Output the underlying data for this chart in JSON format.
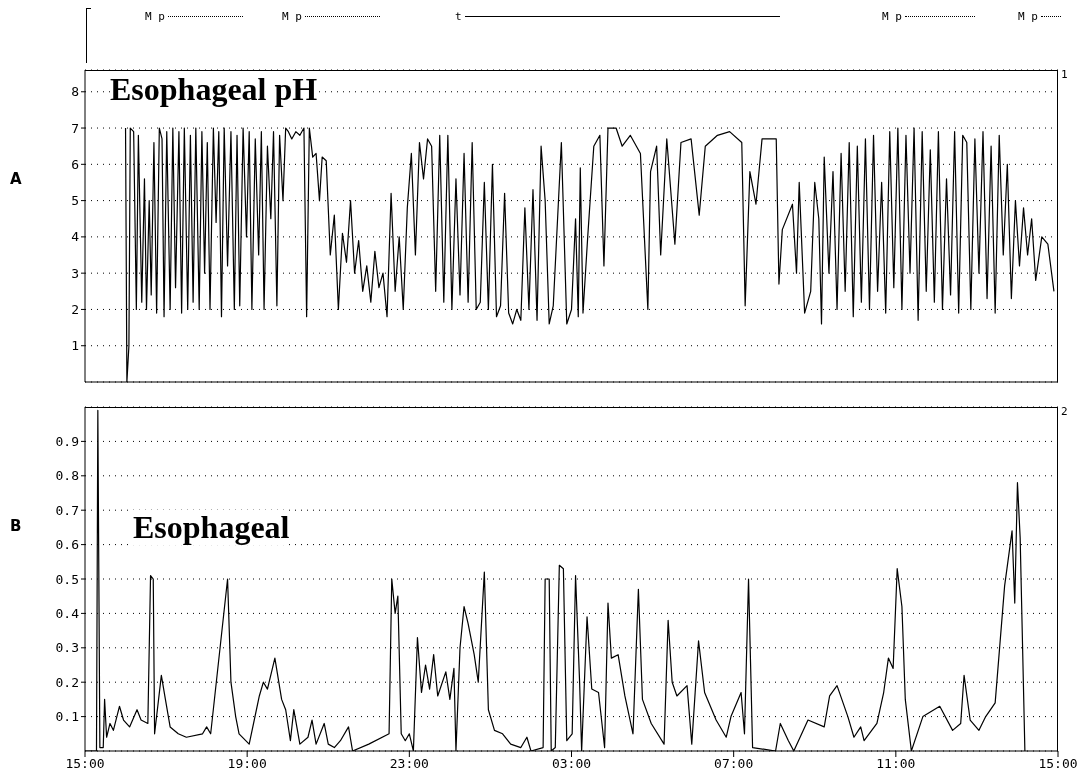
{
  "chart_data": [
    {
      "type": "line",
      "title": "Esophageal pH",
      "xlim": [
        "2000-01-01T15:00",
        "2000-01-02T15:00"
      ],
      "xticks": [
        {
          "value": "2000-01-01T15:00",
          "label": null
        },
        {
          "value": "2000-01-01T19:00",
          "label": null
        },
        {
          "value": "2000-01-01T23:00",
          "label": null
        },
        {
          "value": "2000-01-02T03:00",
          "label": null
        },
        {
          "value": "2000-01-02T07:00",
          "label": null
        },
        {
          "value": "2000-01-02T11:00",
          "label": null
        },
        {
          "value": "2000-01-02T15:00",
          "label": null
        }
      ],
      "ylim": [
        0,
        8.6
      ],
      "yticks": [
        1,
        2,
        3,
        4,
        5,
        6,
        7,
        8
      ],
      "grid": "y",
      "tick_labels": "y",
      "annotations": [
        "A",
        "1",
        "M p",
        "M p",
        "t",
        "M p",
        "M p"
      ],
      "series": [
        {
          "color": "#000000",
          "x": [
            "2000-01-01T16:00",
            "2000-01-01T16:02",
            "2000-01-01T16:05",
            "2000-01-01T16:07",
            "2000-01-01T16:12",
            "2000-01-01T16:16",
            "2000-01-01T16:19",
            "2000-01-01T16:24",
            "2000-01-01T16:28",
            "2000-01-01T16:31",
            "2000-01-01T16:35",
            "2000-01-01T16:38",
            "2000-01-01T16:42",
            "2000-01-01T16:46",
            "2000-01-01T16:50",
            "2000-01-01T16:54",
            "2000-01-01T16:57",
            "2000-01-01T17:01",
            "2000-01-01T17:06",
            "2000-01-01T17:10",
            "2000-01-01T17:14",
            "2000-01-01T17:19",
            "2000-01-01T17:23",
            "2000-01-01T17:27",
            "2000-01-01T17:32",
            "2000-01-01T17:36",
            "2000-01-01T17:40",
            "2000-01-01T17:44",
            "2000-01-01T17:49",
            "2000-01-01T17:53",
            "2000-01-01T17:57",
            "2000-01-01T18:01",
            "2000-01-01T18:05",
            "2000-01-01T18:10",
            "2000-01-01T18:14",
            "2000-01-01T18:18",
            "2000-01-01T18:22",
            "2000-01-01T18:26",
            "2000-01-01T18:31",
            "2000-01-01T18:36",
            "2000-01-01T18:41",
            "2000-01-01T18:45",
            "2000-01-01T18:49",
            "2000-01-01T18:54",
            "2000-01-01T18:59",
            "2000-01-01T19:03",
            "2000-01-01T19:07",
            "2000-01-01T19:12",
            "2000-01-01T19:17",
            "2000-01-01T19:21",
            "2000-01-01T19:25",
            "2000-01-01T19:30",
            "2000-01-01T19:35",
            "2000-01-01T19:39",
            "2000-01-01T19:44",
            "2000-01-01T19:48",
            "2000-01-01T19:53",
            "2000-01-01T19:57",
            "2000-01-01T20:01",
            "2000-01-01T20:06",
            "2000-01-01T20:12",
            "2000-01-01T20:18",
            "2000-01-01T20:24",
            "2000-01-01T20:28",
            "2000-01-01T20:32",
            "2000-01-01T20:37",
            "2000-01-01T20:42",
            "2000-01-01T20:47",
            "2000-01-01T20:51",
            "2000-01-01T20:57",
            "2000-01-01T21:03",
            "2000-01-01T21:09",
            "2000-01-01T21:15",
            "2000-01-01T21:21",
            "2000-01-01T21:27",
            "2000-01-01T21:33",
            "2000-01-01T21:39",
            "2000-01-01T21:45",
            "2000-01-01T21:51",
            "2000-01-01T21:57",
            "2000-01-01T22:03",
            "2000-01-01T22:09",
            "2000-01-01T22:15",
            "2000-01-01T22:21",
            "2000-01-01T22:27",
            "2000-01-01T22:33",
            "2000-01-01T22:39",
            "2000-01-01T22:45",
            "2000-01-01T22:51",
            "2000-01-01T22:57",
            "2000-01-01T23:03",
            "2000-01-01T23:09",
            "2000-01-01T23:15",
            "2000-01-01T23:21",
            "2000-01-01T23:27",
            "2000-01-01T23:33",
            "2000-01-01T23:39",
            "2000-01-01T23:45",
            "2000-01-01T23:51",
            "2000-01-01T23:57",
            "2000-01-02T00:03",
            "2000-01-02T00:09",
            "2000-01-02T00:15",
            "2000-01-02T00:21",
            "2000-01-02T00:27",
            "2000-01-02T00:33",
            "2000-01-02T00:39",
            "2000-01-02T00:45",
            "2000-01-02T00:51",
            "2000-01-02T00:57",
            "2000-01-02T01:03",
            "2000-01-02T01:09",
            "2000-01-02T01:15",
            "2000-01-02T01:21",
            "2000-01-02T01:27",
            "2000-01-02T01:33",
            "2000-01-02T01:39",
            "2000-01-02T01:45",
            "2000-01-02T01:51",
            "2000-01-02T01:57",
            "2000-01-02T02:03",
            "2000-01-02T02:09",
            "2000-01-02T02:15",
            "2000-01-02T02:21",
            "2000-01-02T02:27",
            "2000-01-02T02:33",
            "2000-01-02T02:45",
            "2000-01-02T02:53",
            "2000-01-02T03:00",
            "2000-01-02T03:06",
            "2000-01-02T03:10",
            "2000-01-02T03:13",
            "2000-01-02T03:17",
            "2000-01-02T03:24",
            "2000-01-02T03:33",
            "2000-01-02T03:42",
            "2000-01-02T03:48",
            "2000-01-02T03:54",
            "2000-01-02T04:06",
            "2000-01-02T04:15",
            "2000-01-02T04:27",
            "2000-01-02T04:42",
            "2000-01-02T04:53",
            "2000-01-02T04:57",
            "2000-01-02T05:06",
            "2000-01-02T05:12",
            "2000-01-02T05:21",
            "2000-01-02T05:33",
            "2000-01-02T05:42",
            "2000-01-02T05:57",
            "2000-01-02T06:09",
            "2000-01-02T06:18",
            "2000-01-02T06:36",
            "2000-01-02T06:54",
            "2000-01-02T07:12",
            "2000-01-02T07:17",
            "2000-01-02T07:24",
            "2000-01-02T07:33",
            "2000-01-02T07:42",
            "2000-01-02T08:03",
            "2000-01-02T08:07",
            "2000-01-02T08:12",
            "2000-01-02T08:27",
            "2000-01-02T08:33",
            "2000-01-02T08:37",
            "2000-01-02T08:45",
            "2000-01-02T08:54",
            "2000-01-02T09:00",
            "2000-01-02T09:06",
            "2000-01-02T09:10",
            "2000-01-02T09:14",
            "2000-01-02T09:21",
            "2000-01-02T09:27",
            "2000-01-02T09:33",
            "2000-01-02T09:39",
            "2000-01-02T09:45",
            "2000-01-02T09:51",
            "2000-01-02T09:57",
            "2000-01-02T10:03",
            "2000-01-02T10:09",
            "2000-01-02T10:15",
            "2000-01-02T10:21",
            "2000-01-02T10:27",
            "2000-01-02T10:33",
            "2000-01-02T10:39",
            "2000-01-02T10:45",
            "2000-01-02T10:51",
            "2000-01-02T10:57",
            "2000-01-02T11:03",
            "2000-01-02T11:09",
            "2000-01-02T11:15",
            "2000-01-02T11:21",
            "2000-01-02T11:27",
            "2000-01-02T11:33",
            "2000-01-02T11:39",
            "2000-01-02T11:45",
            "2000-01-02T11:51",
            "2000-01-02T11:57",
            "2000-01-02T12:03",
            "2000-01-02T12:09",
            "2000-01-02T12:15",
            "2000-01-02T12:21",
            "2000-01-02T12:27",
            "2000-01-02T12:33",
            "2000-01-02T12:39",
            "2000-01-02T12:45",
            "2000-01-02T12:51",
            "2000-01-02T12:57",
            "2000-01-02T13:03",
            "2000-01-02T13:09",
            "2000-01-02T13:15",
            "2000-01-02T13:21",
            "2000-01-02T13:27",
            "2000-01-02T13:33",
            "2000-01-02T13:39",
            "2000-01-02T13:45",
            "2000-01-02T13:51",
            "2000-01-02T13:57",
            "2000-01-02T14:03",
            "2000-01-02T14:09",
            "2000-01-02T14:15",
            "2000-01-02T14:21",
            "2000-01-02T14:27",
            "2000-01-02T14:36",
            "2000-01-02T14:45",
            "2000-01-02T14:54"
          ],
          "values": [
            7.0,
            0.0,
            1.0,
            7.0,
            6.9,
            2.0,
            6.8,
            2.2,
            5.6,
            2.0,
            5.0,
            2.4,
            6.6,
            1.9,
            7.0,
            6.7,
            1.8,
            6.9,
            2.0,
            7.0,
            2.6,
            6.9,
            1.9,
            7.0,
            2.0,
            6.8,
            2.2,
            7.0,
            2.0,
            6.9,
            3.0,
            6.6,
            2.0,
            7.0,
            4.4,
            6.9,
            1.8,
            7.0,
            3.2,
            6.9,
            2.0,
            6.8,
            2.1,
            7.0,
            4.0,
            6.9,
            2.0,
            6.7,
            3.5,
            6.9,
            2.0,
            6.5,
            4.5,
            6.9,
            2.1,
            6.8,
            5.0,
            7.0,
            6.9,
            6.7,
            6.9,
            6.8,
            7.0,
            1.8,
            7.0,
            6.2,
            6.3,
            5.0,
            6.2,
            6.1,
            3.5,
            4.6,
            2.0,
            4.1,
            3.3,
            5.0,
            3.0,
            3.9,
            2.5,
            3.2,
            2.2,
            3.6,
            2.6,
            3.0,
            1.8,
            5.2,
            2.5,
            4.0,
            2.0,
            4.8,
            6.3,
            3.5,
            6.6,
            5.6,
            6.7,
            6.5,
            2.5,
            6.8,
            2.2,
            6.8,
            2.0,
            5.6,
            2.4,
            6.3,
            2.2,
            6.6,
            2.0,
            2.2,
            5.5,
            2.0,
            6.0,
            1.8,
            2.1,
            5.2,
            1.9,
            1.6,
            2.0,
            1.7,
            4.8,
            2.0,
            5.3,
            1.7,
            6.5,
            5.0,
            1.6,
            2.1,
            6.6,
            1.6,
            2.0,
            4.5,
            1.8,
            5.9,
            1.9,
            4.0,
            6.5,
            6.8,
            3.2,
            7.0,
            7.0,
            6.5,
            6.8,
            6.3,
            2.0,
            5.8,
            6.5,
            3.5,
            6.7,
            3.8,
            6.6,
            6.7,
            4.6,
            6.5,
            6.8,
            6.9,
            6.6,
            2.1,
            5.8,
            4.9,
            6.7,
            6.7,
            2.7,
            4.2,
            4.9,
            3.0,
            5.5,
            1.9,
            2.5,
            5.5,
            4.5,
            1.6,
            6.2,
            3.0,
            5.8,
            2.0,
            6.3,
            2.5,
            6.6,
            1.8,
            6.5,
            2.2,
            6.7,
            2.0,
            6.8,
            2.5,
            5.5,
            1.9,
            6.9,
            2.6,
            7.0,
            2.0,
            6.8,
            3.0,
            7.0,
            1.7,
            6.9,
            2.5,
            6.4,
            2.2,
            6.9,
            2.0,
            5.6,
            2.4,
            6.9,
            1.9,
            6.8,
            6.6,
            2.0,
            6.7,
            3.0,
            6.9,
            2.3,
            6.5,
            1.9,
            6.8,
            3.5,
            6.0,
            2.3,
            5.0,
            3.2,
            4.8,
            3.5,
            4.5,
            2.8,
            4.0,
            3.8,
            2.5
          ]
        }
      ]
    },
    {
      "type": "line",
      "title": "Esophageal",
      "xlim": [
        "2000-01-01T15:00",
        "2000-01-02T15:00"
      ],
      "xticks": [
        {
          "value": "2000-01-01T15:00",
          "label": "15:00"
        },
        {
          "value": "2000-01-01T19:00",
          "label": "19:00"
        },
        {
          "value": "2000-01-01T23:00",
          "label": "23:00"
        },
        {
          "value": "2000-01-02T03:00",
          "label": "03:00"
        },
        {
          "value": "2000-01-02T07:00",
          "label": "07:00"
        },
        {
          "value": "2000-01-02T11:00",
          "label": "11:00"
        },
        {
          "value": "2000-01-02T15:00",
          "label": "15:00"
        }
      ],
      "ylim": [
        0,
        1.0
      ],
      "yticks": [
        0.1,
        0.2,
        0.3,
        0.4,
        0.5,
        0.6,
        0.7,
        0.8,
        0.9
      ],
      "grid": "y",
      "annotations": [
        "B",
        "2"
      ],
      "series": [
        {
          "color": "#000000",
          "x": [
            "2000-01-01T15:00",
            "2000-01-01T15:17",
            "2000-01-01T15:19",
            "2000-01-01T15:22",
            "2000-01-01T15:27",
            "2000-01-01T15:29",
            "2000-01-01T15:32",
            "2000-01-01T15:37",
            "2000-01-01T15:42",
            "2000-01-01T15:51",
            "2000-01-01T15:57",
            "2000-01-01T16:06",
            "2000-01-01T16:17",
            "2000-01-01T16:23",
            "2000-01-01T16:33",
            "2000-01-01T16:37",
            "2000-01-01T16:41",
            "2000-01-01T16:43",
            "2000-01-01T16:53",
            "2000-01-01T16:59",
            "2000-01-01T17:06",
            "2000-01-01T17:18",
            "2000-01-01T17:30",
            "2000-01-01T17:54",
            "2000-01-01T18:00",
            "2000-01-01T18:06",
            "2000-01-01T18:31",
            "2000-01-01T18:36",
            "2000-01-01T18:43",
            "2000-01-01T18:48",
            "2000-01-01T19:03",
            "2000-01-01T19:18",
            "2000-01-01T19:24",
            "2000-01-01T19:30",
            "2000-01-01T19:41",
            "2000-01-01T19:51",
            "2000-01-01T19:57",
            "2000-01-01T20:04",
            "2000-01-01T20:09",
            "2000-01-01T20:18",
            "2000-01-01T20:30",
            "2000-01-01T20:36",
            "2000-01-01T20:42",
            "2000-01-01T20:54",
            "2000-01-01T21:00",
            "2000-01-01T21:09",
            "2000-01-01T21:18",
            "2000-01-01T21:30",
            "2000-01-01T21:36",
            "2000-01-01T22:00",
            "2000-01-01T22:30",
            "2000-01-01T22:34",
            "2000-01-01T22:39",
            "2000-01-01T22:43",
            "2000-01-01T22:48",
            "2000-01-01T22:54",
            "2000-01-01T23:00",
            "2000-01-01T23:06",
            "2000-01-01T23:12",
            "2000-01-01T23:18",
            "2000-01-01T23:24",
            "2000-01-01T23:30",
            "2000-01-01T23:36",
            "2000-01-01T23:42",
            "2000-01-01T23:54",
            "2000-01-02T00:00",
            "2000-01-02T00:06",
            "2000-01-02T00:09",
            "2000-01-02T00:15",
            "2000-01-02T00:21",
            "2000-01-02T00:27",
            "2000-01-02T00:36",
            "2000-01-02T00:42",
            "2000-01-02T00:51",
            "2000-01-02T00:57",
            "2000-01-02T01:06",
            "2000-01-02T01:18",
            "2000-01-02T01:30",
            "2000-01-02T01:45",
            "2000-01-02T01:54",
            "2000-01-02T02:00",
            "2000-01-02T02:18",
            "2000-01-02T02:21",
            "2000-01-02T02:27",
            "2000-01-02T02:30",
            "2000-01-02T02:36",
            "2000-01-02T02:42",
            "2000-01-02T02:48",
            "2000-01-02T02:53",
            "2000-01-02T03:01",
            "2000-01-02T03:06",
            "2000-01-02T03:12",
            "2000-01-02T03:15",
            "2000-01-02T03:23",
            "2000-01-02T03:30",
            "2000-01-02T03:40",
            "2000-01-02T03:49",
            "2000-01-02T03:54",
            "2000-01-02T03:59",
            "2000-01-02T04:09",
            "2000-01-02T04:19",
            "2000-01-02T04:31",
            "2000-01-02T04:39",
            "2000-01-02T04:45",
            "2000-01-02T04:58",
            "2000-01-02T05:17",
            "2000-01-02T05:23",
            "2000-01-02T05:29",
            "2000-01-02T05:36",
            "2000-01-02T05:51",
            "2000-01-02T05:58",
            "2000-01-02T06:08",
            "2000-01-02T06:17",
            "2000-01-02T06:34",
            "2000-01-02T06:49",
            "2000-01-02T06:56",
            "2000-01-02T07:11",
            "2000-01-02T07:16",
            "2000-01-02T07:22",
            "2000-01-02T07:28",
            "2000-01-02T08:02",
            "2000-01-02T08:09",
            "2000-01-02T08:21",
            "2000-01-02T08:29",
            "2000-01-02T08:50",
            "2000-01-02T09:14",
            "2000-01-02T09:22",
            "2000-01-02T09:33",
            "2000-01-02T09:49",
            "2000-01-02T09:58",
            "2000-01-02T10:08",
            "2000-01-02T10:13",
            "2000-01-02T10:32",
            "2000-01-02T10:42",
            "2000-01-02T10:49",
            "2000-01-02T10:56",
            "2000-01-02T11:02",
            "2000-01-02T11:09",
            "2000-01-02T11:14",
            "2000-01-02T11:23",
            "2000-01-02T11:40",
            "2000-01-02T12:05",
            "2000-01-02T12:24",
            "2000-01-02T12:36",
            "2000-01-02T12:41",
            "2000-01-02T12:50",
            "2000-01-02T13:03",
            "2000-01-02T13:13",
            "2000-01-02T13:27",
            "2000-01-02T13:41",
            "2000-01-02T13:52",
            "2000-01-02T13:56",
            "2000-01-02T14:00",
            "2000-01-02T14:04",
            "2000-01-02T14:11"
          ],
          "values": [
            0.0,
            0.0,
            0.99,
            0.01,
            0.01,
            0.15,
            0.04,
            0.08,
            0.06,
            0.13,
            0.09,
            0.07,
            0.12,
            0.09,
            0.08,
            0.51,
            0.5,
            0.05,
            0.22,
            0.15,
            0.07,
            0.05,
            0.04,
            0.05,
            0.07,
            0.05,
            0.5,
            0.2,
            0.1,
            0.05,
            0.02,
            0.16,
            0.2,
            0.18,
            0.27,
            0.15,
            0.12,
            0.03,
            0.12,
            0.02,
            0.04,
            0.09,
            0.02,
            0.08,
            0.02,
            0.01,
            0.03,
            0.07,
            0.0,
            0.02,
            0.05,
            0.5,
            0.4,
            0.45,
            0.05,
            0.03,
            0.05,
            0.0,
            0.33,
            0.17,
            0.25,
            0.18,
            0.28,
            0.16,
            0.23,
            0.15,
            0.24,
            0.0,
            0.3,
            0.42,
            0.37,
            0.28,
            0.2,
            0.52,
            0.12,
            0.06,
            0.05,
            0.02,
            0.01,
            0.04,
            0.0,
            0.01,
            0.5,
            0.5,
            0.0,
            0.01,
            0.54,
            0.53,
            0.03,
            0.05,
            0.51,
            0.2,
            0.0,
            0.39,
            0.18,
            0.17,
            0.01,
            0.43,
            0.27,
            0.28,
            0.16,
            0.05,
            0.47,
            0.15,
            0.08,
            0.02,
            0.38,
            0.2,
            0.16,
            0.19,
            0.02,
            0.32,
            0.17,
            0.09,
            0.04,
            0.1,
            0.17,
            0.05,
            0.5,
            0.01,
            0.0,
            0.08,
            0.03,
            0.0,
            0.09,
            0.07,
            0.16,
            0.19,
            0.1,
            0.04,
            0.07,
            0.03,
            0.08,
            0.17,
            0.27,
            0.24,
            0.53,
            0.42,
            0.15,
            0.0,
            0.1,
            0.13,
            0.06,
            0.08,
            0.22,
            0.09,
            0.06,
            0.1,
            0.14,
            0.48,
            0.64,
            0.43,
            0.78,
            0.62,
            0.0
          ]
        }
      ]
    }
  ]
}
